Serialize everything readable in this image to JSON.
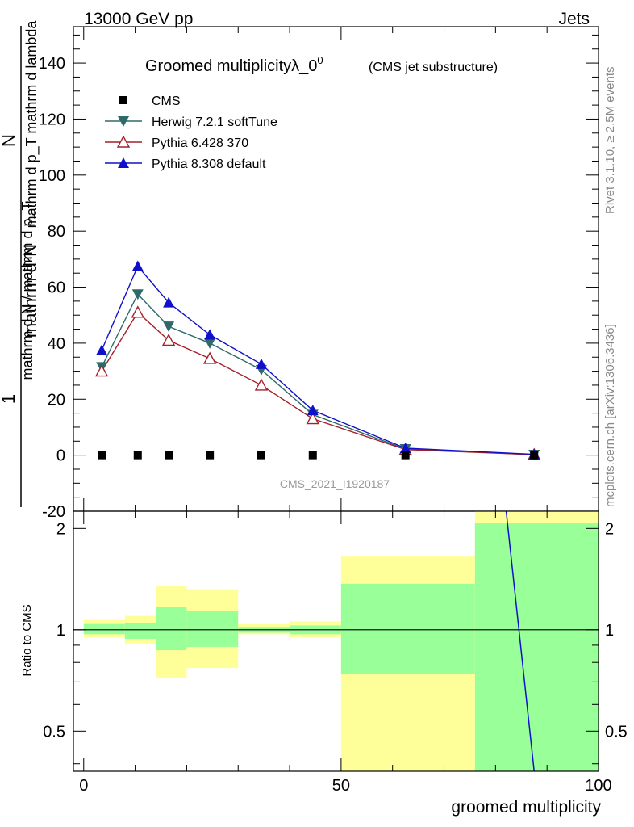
{
  "header": {
    "energy_label": "13000 GeV pp",
    "process_label": "Jets",
    "rivet_label": "Rivet 3.1.10, ≥ 2.5M events",
    "mcplots_label": "mcplots.cern.ch [arXiv:1306.3436]"
  },
  "colors": {
    "cms": "#000000",
    "herwig": "#2e6a6a",
    "pythia6": "#a3202a",
    "pythia8": "#1010cc",
    "band_inner": "#99ff99",
    "band_outer": "#ffff99"
  },
  "chart_data": [
    {
      "type": "line",
      "title": "Groomed multiplicityλ_0",
      "title_sup": "0",
      "subtitle": "(CMS jet substructure)",
      "watermark": "CMS_2021_I1920187",
      "ylabel_parts": [
        "1",
        "mathrm d N / mathrm d p",
        "T",
        "mathrm d p",
        "T",
        "mathrm d lambda",
        "mathrm d",
        "2",
        "N"
      ],
      "ylabel_numerator": "mathrm d²N",
      "ylabel_denominator": "mathrm d p_T mathrm d lambda",
      "ylabel_prefactor": "1",
      "ylabel_prefactor_den": "mathrm d N / mathrm d p_T",
      "xlim": [
        -2,
        100
      ],
      "ylim": [
        -20,
        153
      ],
      "yticks": [
        -20,
        0,
        20,
        40,
        60,
        80,
        100,
        120,
        140
      ],
      "legend": [
        {
          "name": "CMS",
          "marker": "square"
        },
        {
          "name": "Herwig 7.2.1 softTune",
          "marker": "triangle-down"
        },
        {
          "name": "Pythia 6.428 370",
          "marker": "triangle-up-open"
        },
        {
          "name": "Pythia 8.308 default",
          "marker": "triangle-up"
        }
      ],
      "series": [
        {
          "name": "CMS",
          "x": [
            3.5,
            10.5,
            16.5,
            24.5,
            34.5,
            44.5,
            62.5,
            87.5
          ],
          "values": [
            0,
            0,
            0,
            0,
            0,
            0,
            0,
            0
          ]
        },
        {
          "name": "Herwig 7.2.1 softTune",
          "x": [
            3.5,
            10.5,
            16.5,
            24.5,
            34.5,
            44.5,
            62.5,
            87.5
          ],
          "values": [
            31.5,
            57.5,
            46,
            40,
            30.5,
            14.5,
            2.2,
            0.2
          ]
        },
        {
          "name": "Pythia 6.428 370",
          "x": [
            3.5,
            10.5,
            16.5,
            24.5,
            34.5,
            44.5,
            62.5,
            87.5
          ],
          "values": [
            30,
            51,
            41,
            34.5,
            25,
            13,
            2.0,
            0.2
          ]
        },
        {
          "name": "Pythia 8.308 default",
          "x": [
            3.5,
            10.5,
            16.5,
            24.5,
            34.5,
            44.5,
            62.5,
            87.5
          ],
          "values": [
            37.5,
            67.5,
            54.5,
            43,
            32.5,
            16,
            2.5,
            0.3
          ]
        }
      ]
    },
    {
      "type": "ratio",
      "ylabel": "Ratio to CMS",
      "xlabel": "groomed multiplicity",
      "xlim": [
        -2,
        100
      ],
      "ylim": [
        0.38,
        2.25
      ],
      "yticks": [
        0.5,
        1,
        2
      ],
      "ytick_labels": [
        "0.5",
        "1",
        "2"
      ],
      "xticks": [
        0,
        50,
        100
      ],
      "xtick_labels": [
        "0",
        "50",
        "100"
      ],
      "bins": [
        {
          "xlo": 0,
          "xhi": 8,
          "inner": [
            0.97,
            1.04
          ],
          "outer": [
            0.95,
            1.07
          ]
        },
        {
          "xlo": 8,
          "xhi": 14,
          "inner": [
            0.94,
            1.05
          ],
          "outer": [
            0.91,
            1.1
          ]
        },
        {
          "xlo": 14,
          "xhi": 20,
          "inner": [
            0.87,
            1.17
          ],
          "outer": [
            0.72,
            1.35
          ]
        },
        {
          "xlo": 20,
          "xhi": 30,
          "inner": [
            0.89,
            1.14
          ],
          "outer": [
            0.77,
            1.32
          ]
        },
        {
          "xlo": 30,
          "xhi": 40,
          "inner": [
            0.98,
            1.02
          ],
          "outer": [
            0.97,
            1.04
          ]
        },
        {
          "xlo": 40,
          "xhi": 50,
          "inner": [
            0.97,
            1.03
          ],
          "outer": [
            0.95,
            1.06
          ]
        },
        {
          "xlo": 50,
          "xhi": 76,
          "inner": [
            0.74,
            1.37
          ],
          "outer": [
            0.38,
            1.65
          ]
        },
        {
          "xlo": 76,
          "xhi": 100,
          "inner": [
            0.38,
            2.07
          ],
          "outer": [
            0.38,
            2.25
          ]
        }
      ],
      "ratio_line": {
        "name": "Pythia 8.308 default",
        "x": [
          82,
          87.5
        ],
        "values": [
          2.3,
          0.38
        ]
      }
    }
  ]
}
